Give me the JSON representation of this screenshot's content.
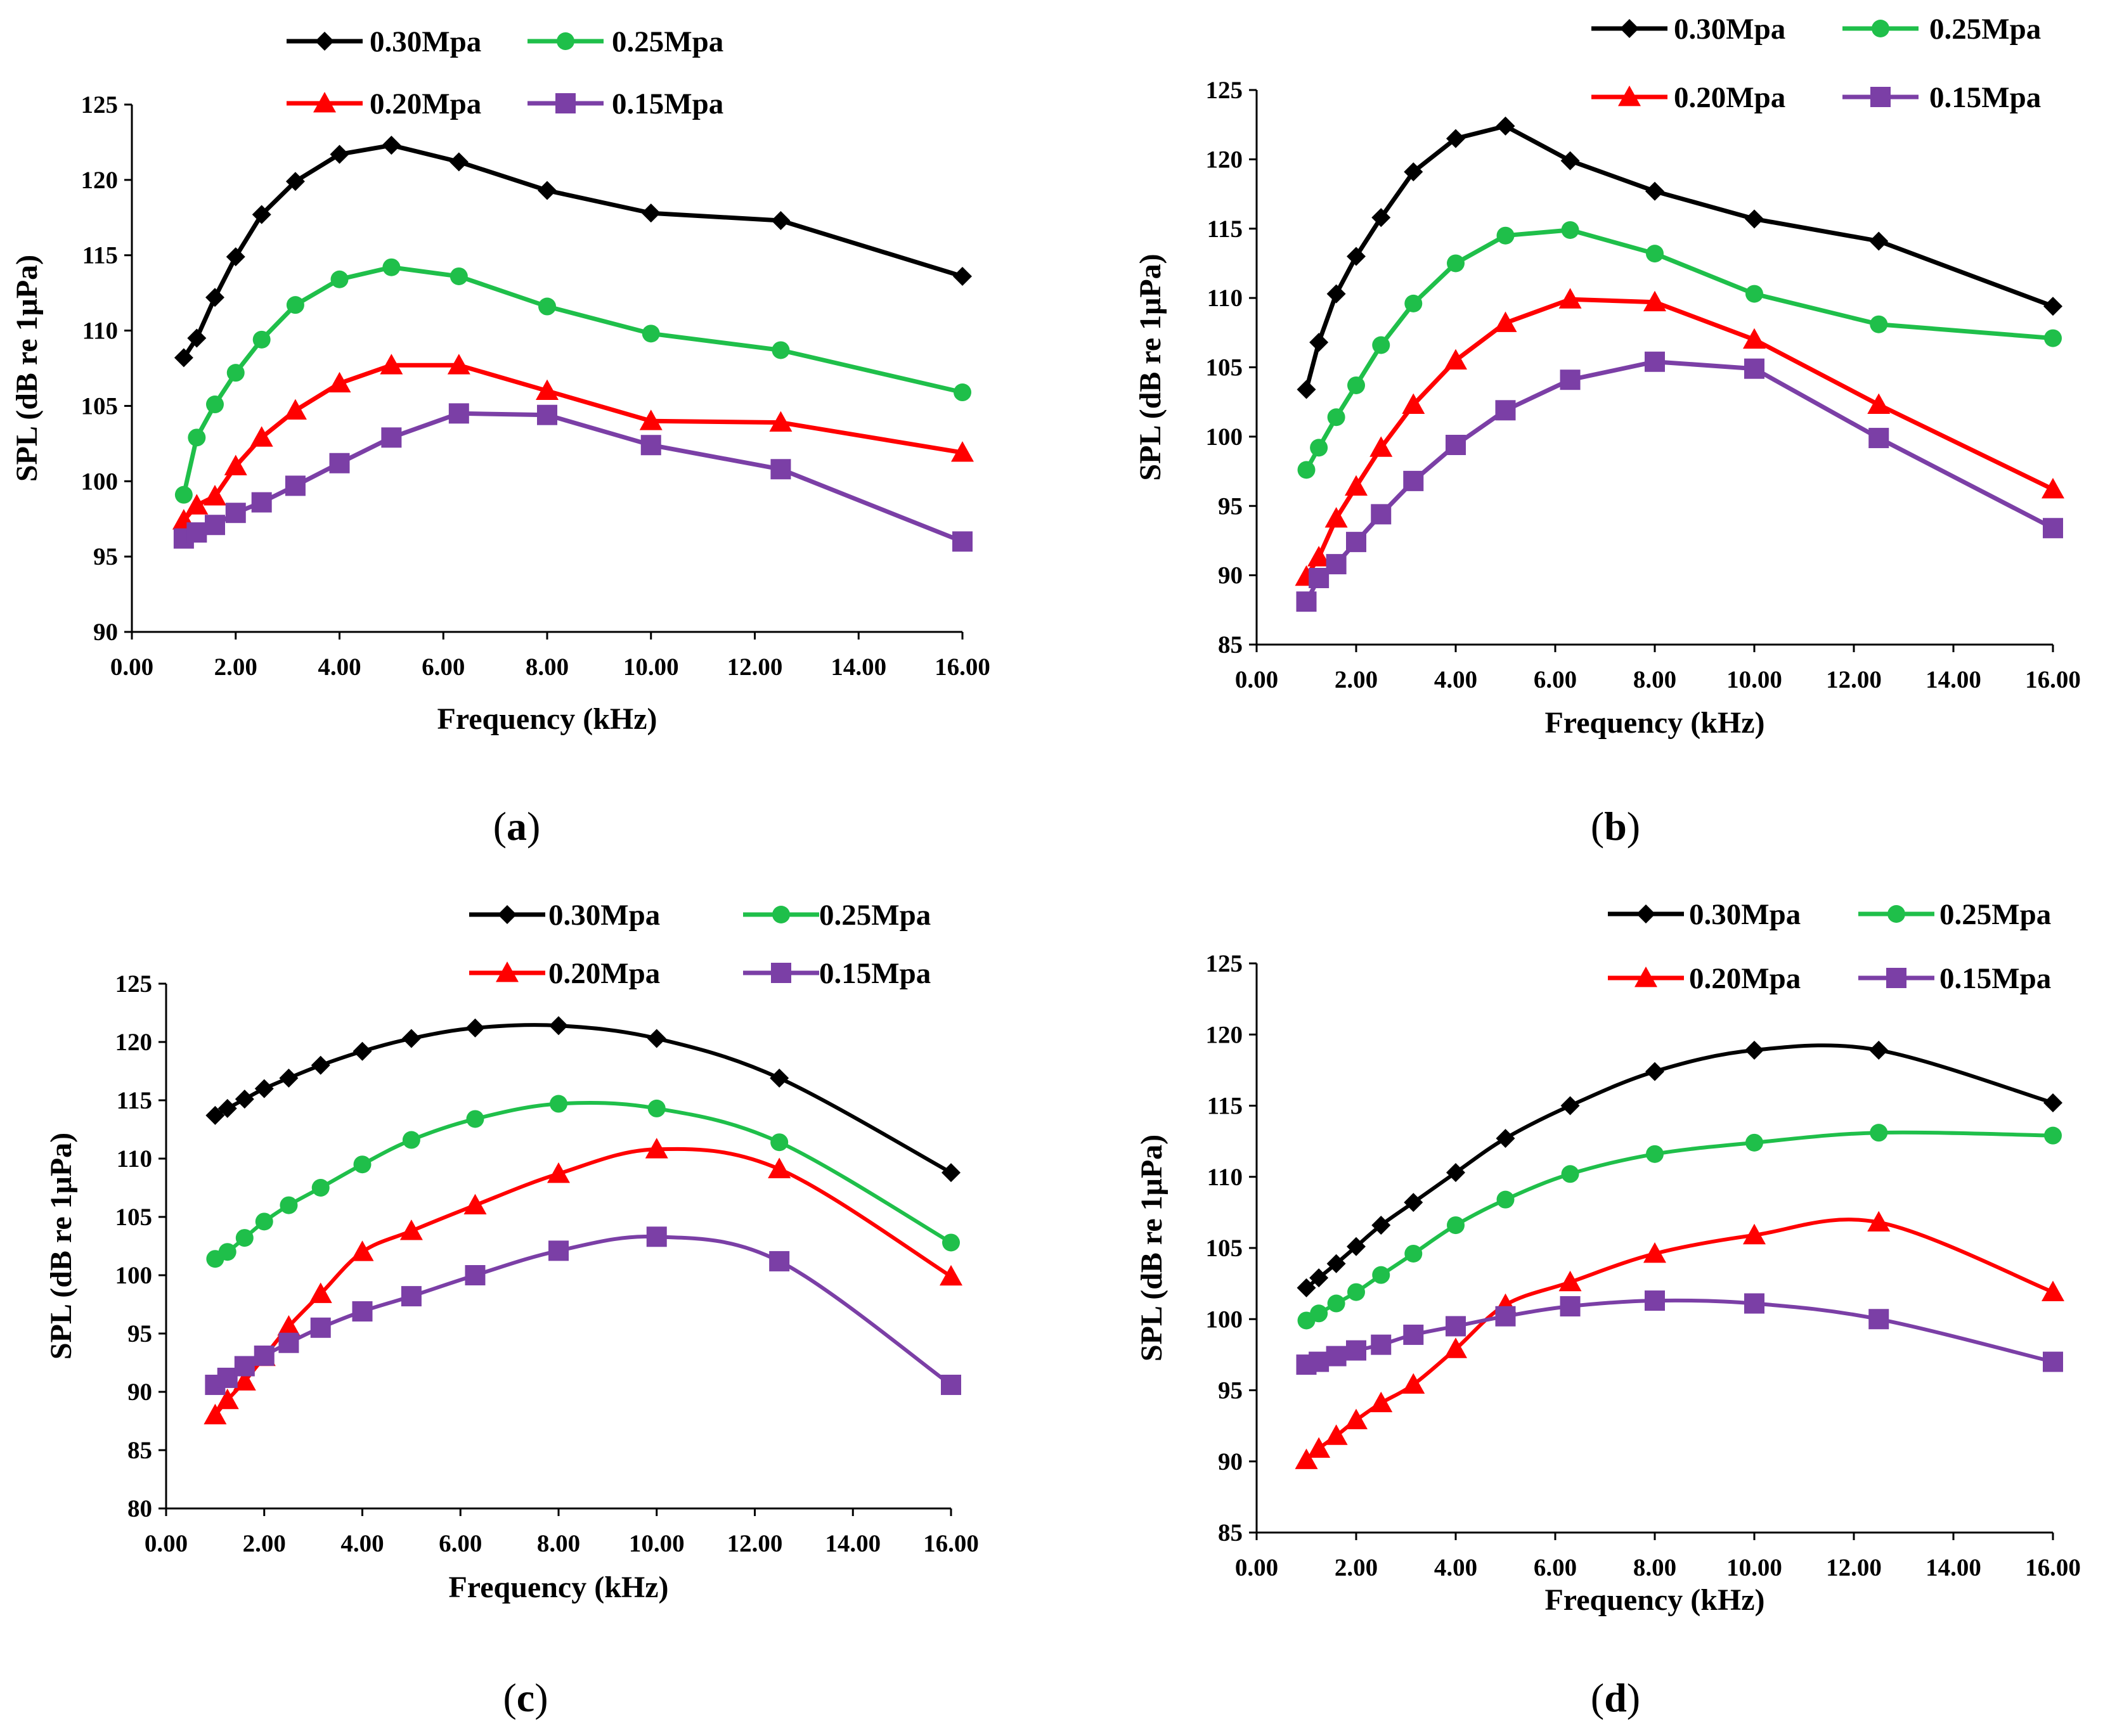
{
  "figure": {
    "legend_labels": [
      "0.30Mpa",
      "0.25Mpa",
      "0.20Mpa",
      "0.15Mpa"
    ],
    "series_colors": [
      "#000000",
      "#1FBF4A",
      "#FF0000",
      "#7B3FA6"
    ],
    "series_markers": [
      "diamond",
      "circle",
      "triangle",
      "square"
    ]
  },
  "chart_data": [
    {
      "type": "line",
      "panel_label": "a",
      "title": "",
      "xlabel": "Frequency  (kHz)",
      "ylabel": "SPL (dB re 1μPa)",
      "xlim": [
        0,
        16
      ],
      "ylim": [
        90,
        125
      ],
      "xticks": [
        "0.00",
        "2.00",
        "4.00",
        "6.00",
        "8.00",
        "10.00",
        "12.00",
        "14.00",
        "16.00"
      ],
      "yticks": [
        "90",
        "95",
        "100",
        "105",
        "110",
        "115",
        "120",
        "125"
      ],
      "smooth": false,
      "x": [
        1.0,
        1.25,
        1.6,
        2.0,
        2.5,
        3.15,
        4.0,
        5.0,
        6.3,
        8.0,
        10.0,
        12.5,
        16.0
      ],
      "series": [
        {
          "name": "0.30Mpa",
          "values": [
            108.2,
            109.5,
            112.2,
            114.9,
            117.7,
            119.9,
            121.7,
            122.3,
            121.2,
            119.3,
            117.8,
            117.3,
            113.6
          ]
        },
        {
          "name": "0.25Mpa",
          "values": [
            99.1,
            102.9,
            105.1,
            107.2,
            109.4,
            111.7,
            113.4,
            114.2,
            113.6,
            111.6,
            109.8,
            108.7,
            105.9
          ]
        },
        {
          "name": "0.20Mpa",
          "values": [
            97.4,
            98.4,
            99.0,
            101.0,
            102.9,
            104.7,
            106.5,
            107.7,
            107.7,
            106.0,
            104.0,
            103.9,
            101.9
          ]
        },
        {
          "name": "0.15Mpa",
          "values": [
            96.2,
            96.6,
            97.1,
            97.9,
            98.6,
            99.7,
            101.2,
            102.9,
            104.5,
            104.4,
            102.4,
            100.8,
            96.0
          ]
        }
      ]
    },
    {
      "type": "line",
      "panel_label": "b",
      "title": "",
      "xlabel": "Frequency  (kHz)",
      "ylabel": "SPL (dB re 1μPa)",
      "xlim": [
        0,
        16
      ],
      "ylim": [
        85,
        125
      ],
      "xticks": [
        "0.00",
        "2.00",
        "4.00",
        "6.00",
        "8.00",
        "10.00",
        "12.00",
        "14.00",
        "16.00"
      ],
      "yticks": [
        "85",
        "90",
        "95",
        "100",
        "105",
        "110",
        "115",
        "120",
        "125"
      ],
      "smooth": false,
      "x": [
        1.0,
        1.25,
        1.6,
        2.0,
        2.5,
        3.15,
        4.0,
        5.0,
        6.3,
        8.0,
        10.0,
        12.5,
        16.0
      ],
      "series": [
        {
          "name": "0.30Mpa",
          "values": [
            103.4,
            106.8,
            110.3,
            113.0,
            115.8,
            119.1,
            121.5,
            122.4,
            119.9,
            117.7,
            115.7,
            114.1,
            109.4
          ]
        },
        {
          "name": "0.25Mpa",
          "values": [
            97.6,
            99.2,
            101.4,
            103.7,
            106.6,
            109.6,
            112.5,
            114.5,
            114.9,
            113.2,
            110.3,
            108.1,
            107.1
          ]
        },
        {
          "name": "0.20Mpa",
          "values": [
            89.9,
            91.3,
            94.1,
            96.4,
            99.2,
            102.3,
            105.5,
            108.2,
            109.9,
            109.7,
            107.0,
            102.3,
            96.2
          ]
        },
        {
          "name": "0.15Mpa",
          "values": [
            88.1,
            89.8,
            90.8,
            92.4,
            94.4,
            96.8,
            99.4,
            101.9,
            104.1,
            105.4,
            104.9,
            99.9,
            93.4
          ]
        }
      ]
    },
    {
      "type": "line",
      "panel_label": "c",
      "title": "",
      "xlabel": "Frequency  (kHz)",
      "ylabel": "SPL (dB re 1μPa)",
      "xlim": [
        0,
        16
      ],
      "ylim": [
        80,
        125
      ],
      "xticks": [
        "0.00",
        "2.00",
        "4.00",
        "6.00",
        "8.00",
        "10.00",
        "12.00",
        "14.00",
        "16.00"
      ],
      "yticks": [
        "80",
        "85",
        "90",
        "95",
        "100",
        "105",
        "110",
        "115",
        "120",
        "125"
      ],
      "smooth": true,
      "x": [
        1.0,
        1.25,
        1.6,
        2.0,
        2.5,
        3.15,
        4.0,
        5.0,
        6.3,
        8.0,
        10.0,
        12.5,
        16.0
      ],
      "series": [
        {
          "name": "0.30Mpa",
          "values": [
            113.7,
            114.3,
            115.1,
            116.0,
            116.9,
            118.0,
            119.2,
            120.3,
            121.2,
            121.4,
            120.3,
            116.9,
            108.8
          ]
        },
        {
          "name": "0.25Mpa",
          "values": [
            101.4,
            102.0,
            103.2,
            104.6,
            106.0,
            107.5,
            109.5,
            111.6,
            113.4,
            114.7,
            114.3,
            111.4,
            102.8
          ]
        },
        {
          "name": "0.20Mpa",
          "values": [
            88.0,
            89.3,
            90.9,
            93.0,
            95.6,
            98.4,
            102.0,
            103.8,
            106.0,
            108.7,
            110.8,
            109.1,
            99.9
          ]
        },
        {
          "name": "0.15Mpa",
          "values": [
            90.6,
            91.2,
            92.2,
            93.1,
            94.2,
            95.5,
            96.9,
            98.2,
            100.0,
            102.1,
            103.3,
            101.2,
            90.6
          ]
        }
      ]
    },
    {
      "type": "line",
      "panel_label": "d",
      "title": "",
      "xlabel": "Frequency  (kHz)",
      "ylabel": "SPL (dB re 1μPa)",
      "xlim": [
        0,
        16
      ],
      "ylim": [
        85,
        125
      ],
      "xticks": [
        "0.00",
        "2.00",
        "4.00",
        "6.00",
        "8.00",
        "10.00",
        "12.00",
        "14.00",
        "16.00"
      ],
      "yticks": [
        "85",
        "90",
        "95",
        "100",
        "105",
        "110",
        "115",
        "120",
        "125"
      ],
      "smooth": true,
      "x": [
        1.0,
        1.25,
        1.6,
        2.0,
        2.5,
        3.15,
        4.0,
        5.0,
        6.3,
        8.0,
        10.0,
        12.5,
        16.0
      ],
      "series": [
        {
          "name": "0.30Mpa",
          "values": [
            102.2,
            102.9,
            103.9,
            105.1,
            106.6,
            108.2,
            110.3,
            112.7,
            115.0,
            117.4,
            118.9,
            118.9,
            115.2
          ]
        },
        {
          "name": "0.25Mpa",
          "values": [
            99.9,
            100.4,
            101.1,
            101.9,
            103.1,
            104.6,
            106.6,
            108.4,
            110.2,
            111.6,
            112.4,
            113.1,
            112.9
          ]
        },
        {
          "name": "0.20Mpa",
          "values": [
            90.1,
            90.9,
            91.8,
            92.9,
            94.1,
            95.4,
            97.9,
            101.0,
            102.6,
            104.6,
            105.9,
            106.8,
            101.9
          ]
        },
        {
          "name": "0.15Mpa",
          "values": [
            96.8,
            97.0,
            97.4,
            97.8,
            98.2,
            98.9,
            99.5,
            100.2,
            100.9,
            101.3,
            101.1,
            100.0,
            97.0
          ]
        }
      ]
    }
  ]
}
